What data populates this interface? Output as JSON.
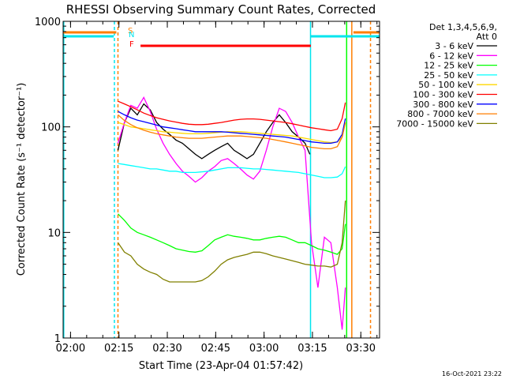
{
  "chart_data": {
    "type": "line",
    "title": "RHESSI Observing Summary Count Rates, Corrected",
    "xlabel": "Start Time (23-Apr-04 01:57:42)",
    "ylabel": "Corrected Count Rate (s⁻¹ detector⁻¹)",
    "y_scale": "log",
    "ylim": [
      1,
      1000
    ],
    "xlim": [
      "01:57:42",
      "03:35:48"
    ],
    "x_units": "minutes after 01:57:42",
    "x_ticks": [
      {
        "label": "02:00",
        "value": 2.3
      },
      {
        "label": "02:15",
        "value": 17.3
      },
      {
        "label": "02:30",
        "value": 32.3
      },
      {
        "label": "02:45",
        "value": 47.3
      },
      {
        "label": "03:00",
        "value": 62.3
      },
      {
        "label": "03:15",
        "value": 77.3
      },
      {
        "label": "03:30",
        "value": 92.3
      }
    ],
    "y_ticks": [
      {
        "label": "1",
        "value": 1
      },
      {
        "label": "10",
        "value": 10
      },
      {
        "label": "100",
        "value": 100
      },
      {
        "label": "1000",
        "value": 1000
      }
    ],
    "legend_header": [
      "Det 1,3,4,5,6,9,",
      "Att 0"
    ],
    "legend_position": "right",
    "timestamp": "16-Oct-2021 23:22",
    "flags": [
      {
        "label": "S",
        "color": "#ff7f00",
        "segments": [
          [
            0,
            16.5
          ],
          [
            90,
            98.1
          ]
        ]
      },
      {
        "label": "N",
        "color": "#00e5ee",
        "segments": [
          [
            0,
            15.7
          ],
          [
            76.7,
            98.1
          ]
        ]
      },
      {
        "label": "F",
        "color": "#ff0000",
        "segments": [
          [
            24.0,
            76.8
          ]
        ]
      }
    ],
    "series": [
      {
        "name": "3 - 6 keV",
        "color": "#000000",
        "x": [
          17,
          19,
          21,
          23,
          25,
          27,
          29,
          31,
          33,
          35,
          37,
          39,
          41,
          43,
          45,
          47,
          49,
          51,
          53,
          55,
          57,
          59,
          61,
          63,
          65,
          67,
          69,
          71,
          73,
          75,
          76.5
        ],
        "y": [
          60,
          110,
          150,
          130,
          165,
          145,
          110,
          95,
          85,
          75,
          70,
          62,
          55,
          50,
          55,
          60,
          65,
          70,
          60,
          55,
          50,
          55,
          70,
          90,
          110,
          130,
          110,
          90,
          80,
          70,
          55
        ]
      },
      {
        "name": "6 - 12 keV",
        "color": "#ff00ff",
        "x": [
          17,
          19,
          21,
          23,
          25,
          27,
          29,
          31,
          33,
          35,
          37,
          39,
          41,
          43,
          45,
          47,
          49,
          51,
          53,
          55,
          57,
          59,
          61,
          63,
          65,
          67,
          69,
          71,
          73,
          75,
          77,
          79,
          81,
          83,
          85,
          86.5,
          87.5
        ],
        "y": [
          70,
          110,
          160,
          150,
          190,
          140,
          95,
          70,
          55,
          45,
          38,
          34,
          30,
          33,
          38,
          42,
          48,
          50,
          45,
          40,
          35,
          32,
          38,
          60,
          100,
          150,
          140,
          110,
          80,
          60,
          8,
          3,
          9,
          8,
          3,
          1.2,
          3
        ]
      },
      {
        "name": "12 - 25 keV",
        "color": "#00ff00",
        "x": [
          17,
          19,
          21,
          23,
          25,
          27,
          29,
          31,
          33,
          35,
          37,
          39,
          41,
          43,
          45,
          47,
          49,
          51,
          53,
          55,
          57,
          59,
          61,
          63,
          65,
          67,
          69,
          71,
          73,
          75,
          77,
          79,
          81,
          83,
          85,
          86.5,
          87.5
        ],
        "y": [
          15,
          13,
          11,
          10,
          9.5,
          9,
          8.5,
          8,
          7.5,
          7,
          6.8,
          6.6,
          6.5,
          6.7,
          7.5,
          8.5,
          9,
          9.5,
          9.2,
          9,
          8.8,
          8.5,
          8.5,
          8.8,
          9,
          9.2,
          9,
          8.5,
          8,
          8,
          7.5,
          7,
          6.8,
          6.5,
          6.2,
          7,
          12
        ]
      },
      {
        "name": "25 - 50 keV",
        "color": "#00ffff",
        "x": [
          17,
          19,
          21,
          23,
          25,
          27,
          29,
          31,
          33,
          35,
          37,
          39,
          41,
          43,
          45,
          47,
          49,
          51,
          53,
          55,
          57,
          59,
          61,
          63,
          65,
          67,
          69,
          71,
          73,
          75,
          77,
          79,
          81,
          83,
          85,
          86.5,
          87.5
        ],
        "y": [
          45,
          44,
          43,
          42,
          41,
          40,
          40,
          39,
          38,
          38,
          37,
          37,
          37,
          37.5,
          38,
          39,
          40,
          41,
          41,
          41,
          40.5,
          40,
          40,
          39.5,
          39,
          38.5,
          38,
          37.5,
          37,
          36,
          35,
          34,
          33,
          33,
          33.5,
          36,
          42
        ]
      },
      {
        "name": "50 - 100 keV",
        "color": "#ffd700",
        "x": [
          17,
          19,
          21,
          23,
          25,
          27,
          29,
          31,
          33,
          35,
          37,
          39,
          41,
          43,
          45,
          47,
          49,
          51,
          53,
          55,
          57,
          59,
          61,
          63,
          65,
          67,
          69,
          71,
          73,
          75,
          77,
          79,
          81,
          83,
          85,
          86.5,
          87.5
        ],
        "y": [
          110,
          105,
          100,
          98,
          96,
          94,
          92,
          90,
          89,
          88,
          87,
          86,
          86,
          86,
          87,
          88,
          89,
          90,
          90,
          90,
          89,
          88,
          87,
          86,
          85,
          84,
          83,
          82,
          80,
          78,
          76,
          74,
          72,
          71,
          72,
          80,
          110
        ]
      },
      {
        "name": "100 - 300 keV",
        "color": "#ff0000",
        "x": [
          17,
          19,
          21,
          23,
          25,
          27,
          29,
          31,
          33,
          35,
          37,
          39,
          41,
          43,
          45,
          47,
          49,
          51,
          53,
          55,
          57,
          59,
          61,
          63,
          65,
          67,
          69,
          71,
          73,
          75,
          77,
          79,
          81,
          83,
          85,
          86.5,
          87.5
        ],
        "y": [
          175,
          165,
          155,
          145,
          135,
          128,
          122,
          118,
          114,
          111,
          108,
          106,
          105,
          105,
          106,
          108,
          110,
          113,
          116,
          118,
          119,
          119,
          118,
          116,
          114,
          112,
          110,
          107,
          104,
          101,
          98,
          96,
          94,
          92,
          95,
          120,
          170
        ]
      },
      {
        "name": "300 - 800 keV",
        "color": "#0000ff",
        "x": [
          17,
          19,
          21,
          23,
          25,
          27,
          29,
          31,
          33,
          35,
          37,
          39,
          41,
          43,
          45,
          47,
          49,
          51,
          53,
          55,
          57,
          59,
          61,
          63,
          65,
          67,
          69,
          71,
          73,
          75,
          77,
          79,
          81,
          83,
          85,
          86.5,
          87.5
        ],
        "y": [
          140,
          130,
          122,
          116,
          112,
          108,
          104,
          100,
          98,
          96,
          94,
          92,
          90,
          90,
          90,
          90,
          90,
          89,
          88,
          87,
          86,
          85,
          84,
          83,
          82,
          81,
          80,
          78,
          76,
          74,
          72,
          71,
          70,
          70,
          72,
          85,
          120
        ]
      },
      {
        "name": "800 - 7000 keV",
        "color": "#ff7f00",
        "x": [
          17,
          19,
          21,
          23,
          25,
          27,
          29,
          31,
          33,
          35,
          37,
          39,
          41,
          43,
          45,
          47,
          49,
          51,
          53,
          55,
          57,
          59,
          61,
          63,
          65,
          67,
          69,
          71,
          73,
          75,
          77,
          79,
          81,
          83,
          85,
          86.5,
          87.5
        ],
        "y": [
          130,
          115,
          105,
          98,
          93,
          89,
          86,
          84,
          82,
          80,
          79,
          78,
          78,
          78,
          79,
          80,
          81,
          82,
          82,
          82,
          81,
          80,
          79,
          78,
          76,
          74,
          72,
          70,
          68,
          66,
          64,
          63,
          62,
          62,
          65,
          80,
          110
        ]
      },
      {
        "name": "7000 - 15000 keV",
        "color": "#808000",
        "x": [
          17,
          19,
          21,
          23,
          25,
          27,
          29,
          31,
          33,
          35,
          37,
          39,
          41,
          43,
          45,
          47,
          49,
          51,
          53,
          55,
          57,
          59,
          61,
          63,
          65,
          67,
          69,
          71,
          73,
          75,
          77,
          79,
          81,
          83,
          85,
          86.5,
          87.5
        ],
        "y": [
          8,
          6.5,
          6,
          5,
          4.5,
          4.2,
          4,
          3.6,
          3.4,
          3.4,
          3.4,
          3.4,
          3.4,
          3.5,
          3.8,
          4.3,
          5,
          5.5,
          5.8,
          6,
          6.2,
          6.5,
          6.5,
          6.3,
          6,
          5.8,
          5.6,
          5.4,
          5.2,
          5,
          4.9,
          4.8,
          4.8,
          4.7,
          5,
          8,
          20
        ]
      }
    ],
    "vertical_lines": [
      {
        "x": 0.2,
        "color": "#00e5ee",
        "style": "solid"
      },
      {
        "x": 15.9,
        "color": "#00e5ee",
        "style": "dashed"
      },
      {
        "x": 17.0,
        "color": "#ff7f00",
        "style": "dashed"
      },
      {
        "x": 76.7,
        "color": "#00e5ee",
        "style": "solid"
      },
      {
        "x": 87.9,
        "color": "#00ff00",
        "style": "solid"
      },
      {
        "x": 89.5,
        "color": "#ff7f00",
        "style": "solid"
      },
      {
        "x": 95.3,
        "color": "#ff7f00",
        "style": "dashed"
      }
    ]
  }
}
